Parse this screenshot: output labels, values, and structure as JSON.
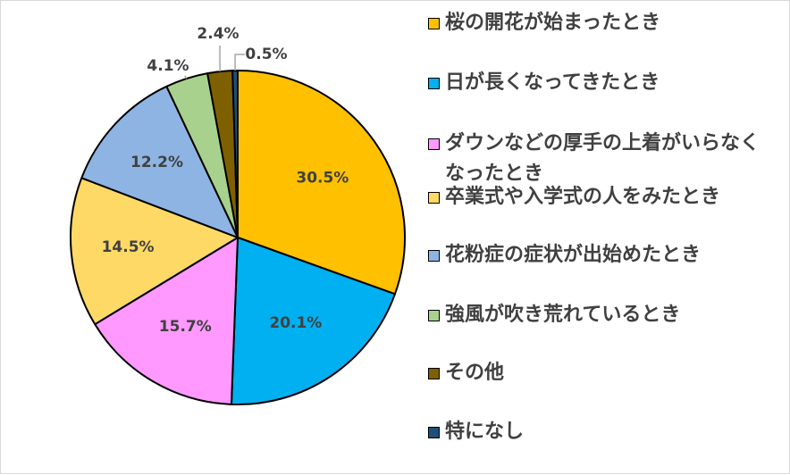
{
  "chart_data": {
    "type": "pie",
    "title": "",
    "slices": [
      {
        "label": "桜の開花が始まったとき",
        "value": 30.5,
        "display": "30.5%",
        "color": "#FFC000"
      },
      {
        "label": "日が長くなってきたとき",
        "value": 20.1,
        "display": "20.1%",
        "color": "#00B0F0"
      },
      {
        "label": "ダウンなどの厚手の上着がいらなくなったとき",
        "value": 15.7,
        "display": "15.7%",
        "color": "#FF99FF"
      },
      {
        "label": "卒業式や入学式の人をみたとき",
        "value": 14.5,
        "display": "14.5%",
        "color": "#FFD966"
      },
      {
        "label": "花粉症の症状が出始めたとき",
        "value": 12.2,
        "display": "12.2%",
        "color": "#8EB4E3"
      },
      {
        "label": "強風が吹き荒れているとき",
        "value": 4.1,
        "display": "4.1%",
        "color": "#A9D18E"
      },
      {
        "label": "その他",
        "value": 2.4,
        "display": "2.4%",
        "color": "#7F6000"
      },
      {
        "label": "特になし",
        "value": 0.5,
        "display": "0.5%",
        "color": "#1F4E79"
      }
    ],
    "start_angle": "12 o'clock",
    "direction": "clockwise",
    "legend_position": "right",
    "slice_border_color": "#000000",
    "label_color": "#404040",
    "leader_line_color": "#A6A6A6"
  }
}
